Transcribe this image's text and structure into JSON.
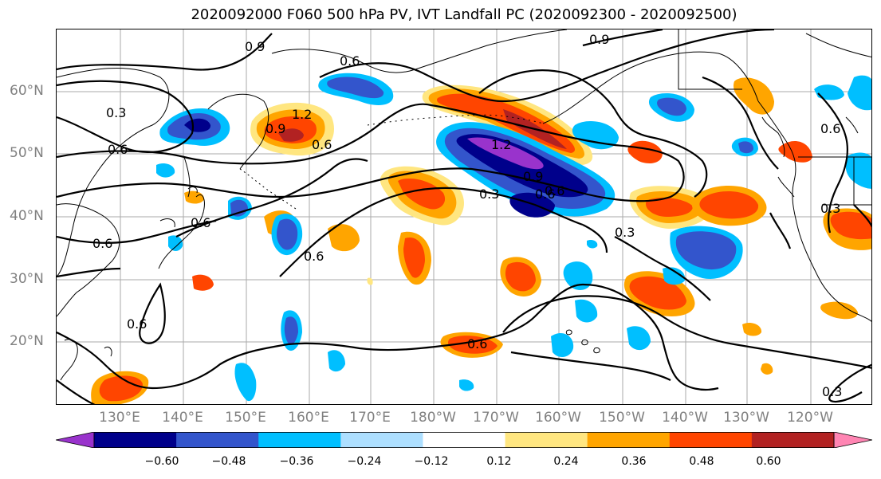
{
  "title": "2020092000 F060 500 hPa PV, IVT Landfall PC (2020092300 - 2020092500)",
  "lat_labels": [
    "60°N",
    "50°N",
    "40°N",
    "30°N",
    "20°N"
  ],
  "lon_labels": [
    "130°E",
    "140°E",
    "150°E",
    "160°E",
    "170°E",
    "180°W",
    "170°W",
    "160°W",
    "150°W",
    "140°W",
    "130°W",
    "120°W"
  ],
  "colorbar": {
    "ticks": [
      "−0.60",
      "−0.48",
      "−0.36",
      "−0.24",
      "−0.12",
      "0.12",
      "0.24",
      "0.36",
      "0.48",
      "0.60"
    ],
    "colors": [
      "#9933CC",
      "#00008B",
      "#3355CC",
      "#00BFFF",
      "#ADDFFF",
      "#FFFFFF",
      "#FFE680",
      "#FFA500",
      "#FF4500",
      "#B22222",
      "#FF85B3"
    ]
  },
  "contour_labels": [
    "0.9",
    "0.6",
    "0.3",
    "0.6",
    "0.6",
    "1.2",
    "0.9",
    "0.6",
    "0.6",
    "0.6",
    "0.6",
    "0.6",
    "1.2",
    "0.9",
    "0.6",
    "0.3",
    "0.3",
    "0.6",
    "0.3",
    "0.3",
    "0.9",
    "0.6"
  ],
  "fill_colors": {
    "neg_strong": "#00008B",
    "neg_mid": "#3355CC",
    "neg_light": "#00BFFF",
    "neg_pale": "#ADDFFF",
    "neg_purple": "#9933CC",
    "pos_pale": "#FFE680",
    "pos_light": "#FFA500",
    "pos_mid": "#FF4500",
    "pos_strong": "#B22222"
  }
}
